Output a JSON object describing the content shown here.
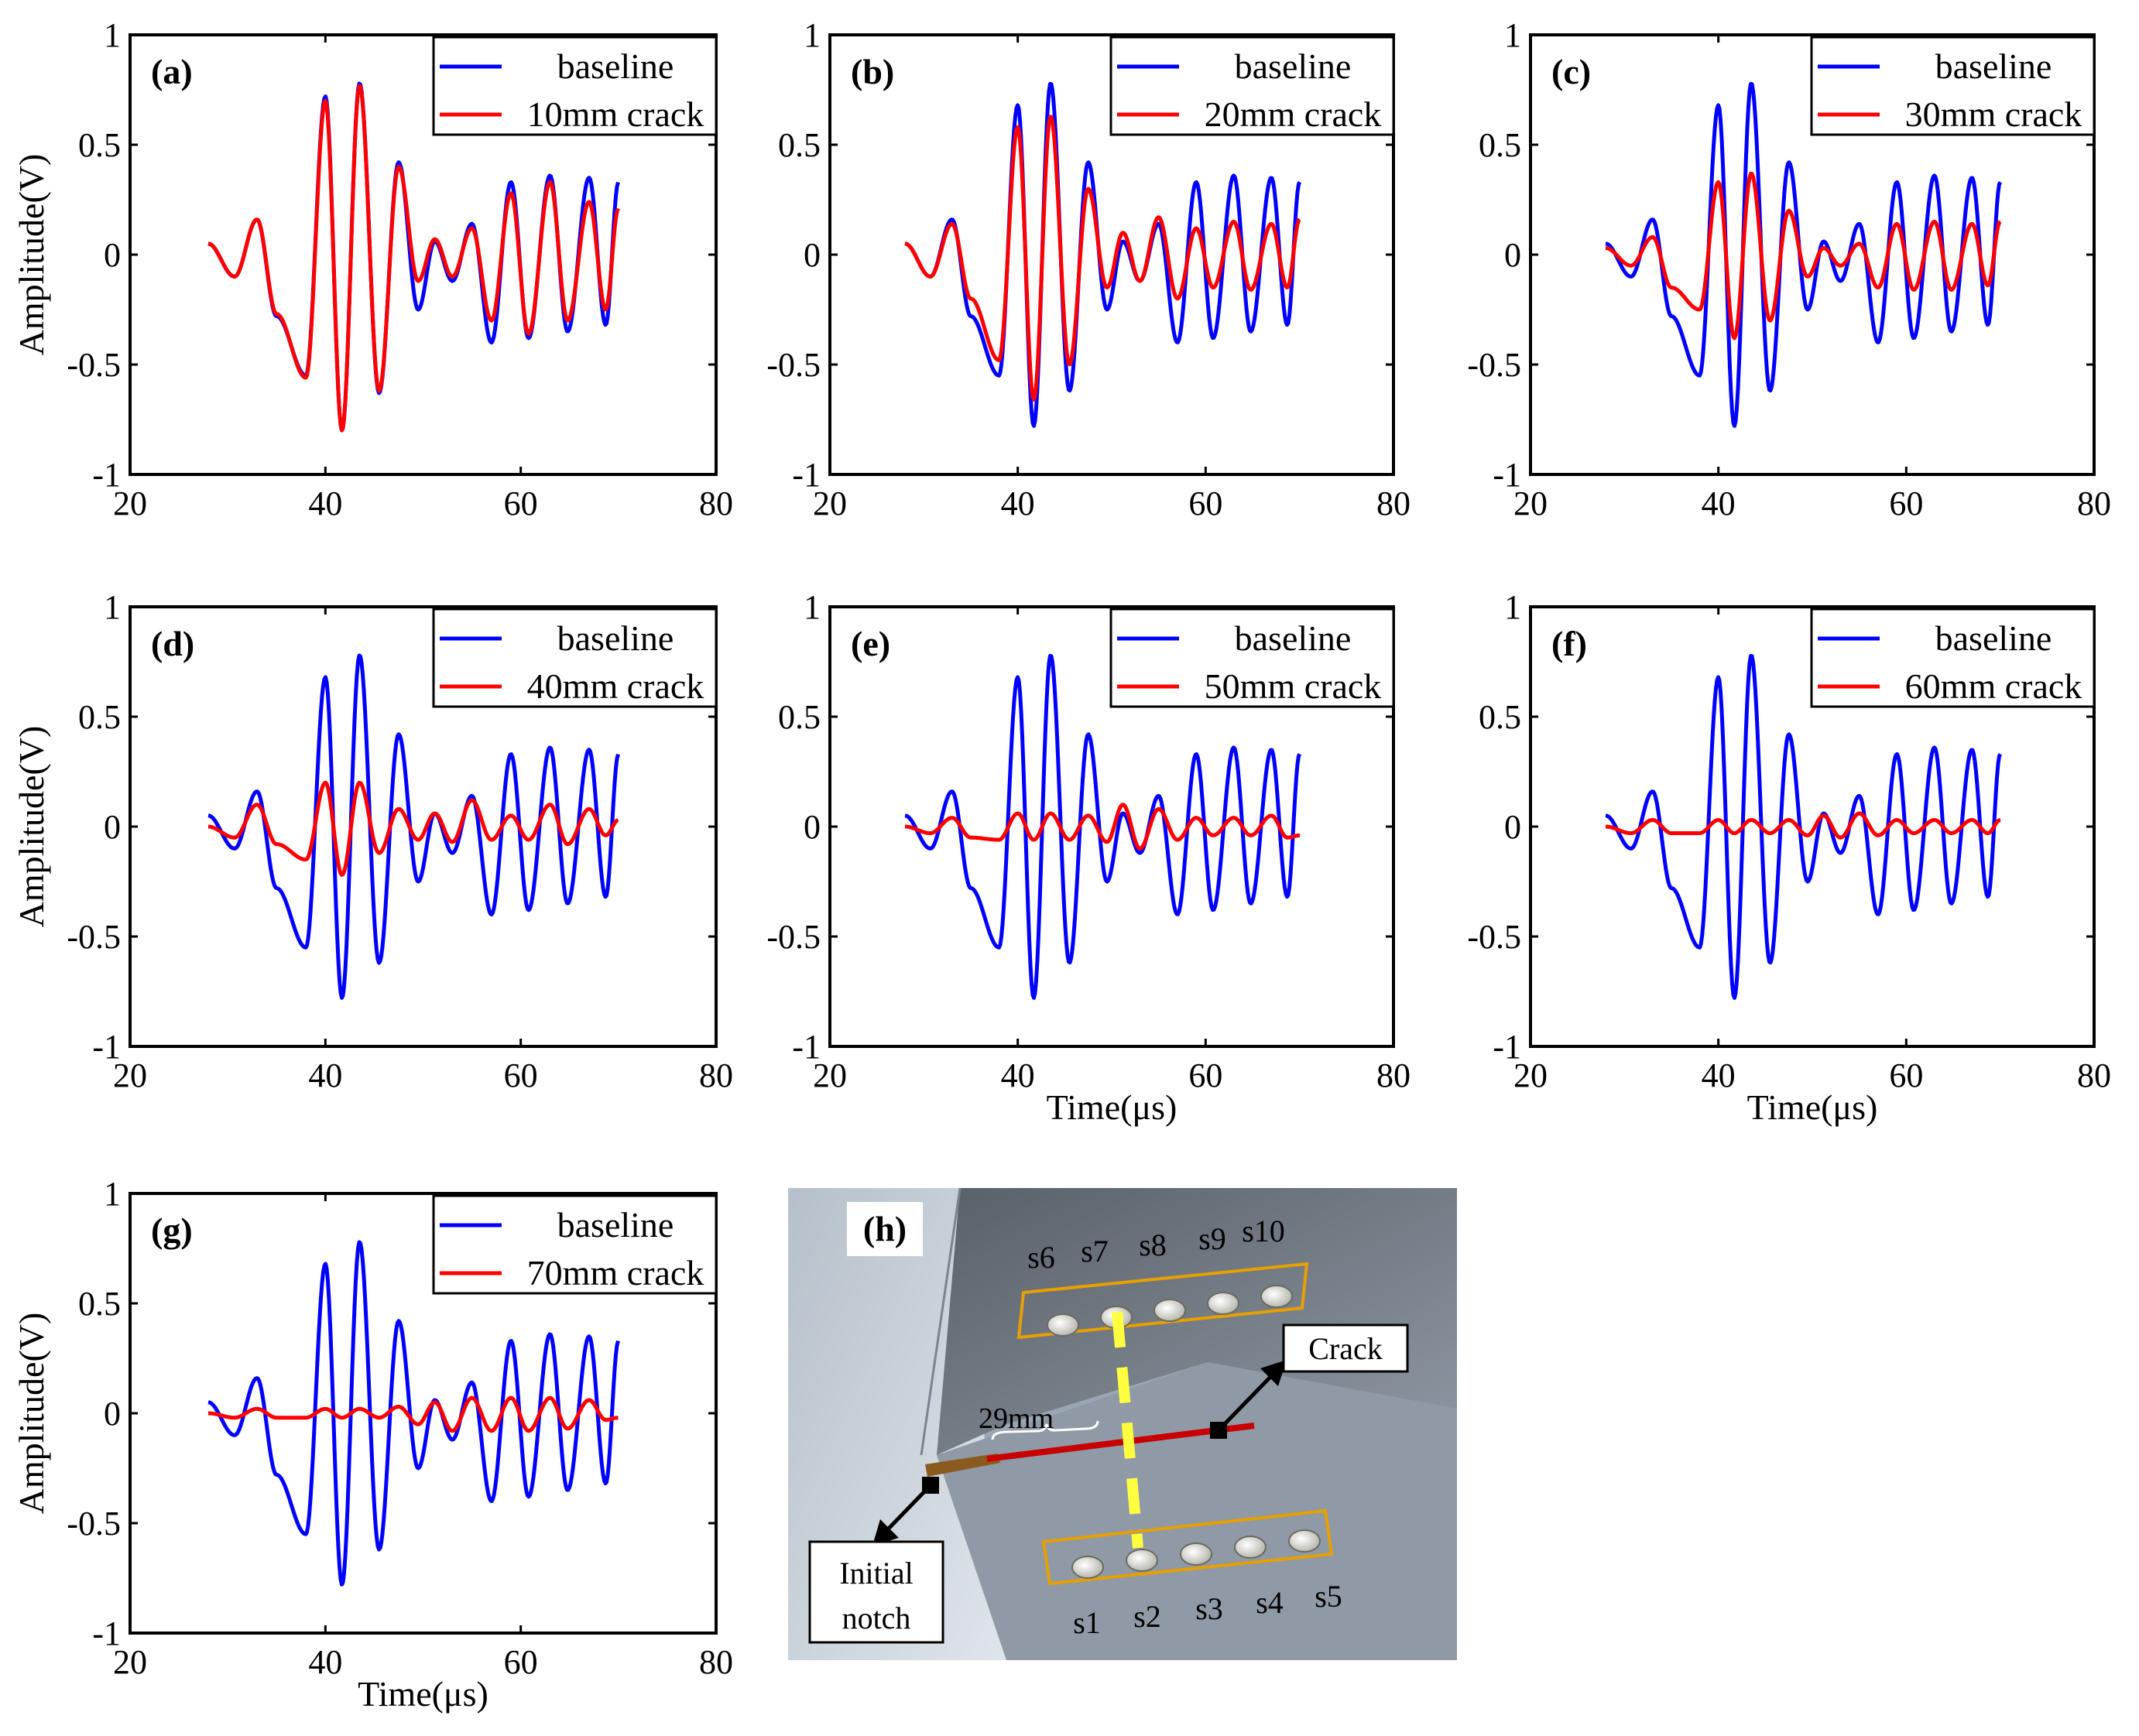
{
  "figure": {
    "labels": [
      "(a)",
      "(b)",
      "(c)",
      "(d)",
      "(e)",
      "(f)",
      "(g)",
      "(h)"
    ]
  },
  "colors": {
    "baseline": "#0000ff",
    "crack": "#ff0000",
    "axis": "#000000"
  },
  "chart_data": [
    {
      "type": "line",
      "panel": "(a)",
      "crack_mm": 10,
      "xlim": [
        20,
        80
      ],
      "ylim": [
        -1,
        1
      ],
      "xticks": [
        "20",
        "40",
        "60",
        "80"
      ],
      "yticks": [
        "-1",
        "-0.5",
        "0",
        "0.5",
        "1"
      ],
      "xlabel": "",
      "ylabel": "Amplitude(V)",
      "legend": [
        "baseline",
        "10mm crack"
      ],
      "legend_position": "top-right",
      "series": [
        {
          "name": "baseline",
          "x": [
            28,
            30.7,
            33,
            35,
            38,
            40,
            41.7,
            43.5,
            45.5,
            47.5,
            49.5,
            51.2,
            53,
            55,
            57,
            59,
            60.8,
            63,
            64.8,
            67,
            68.7,
            70
          ],
          "values": [
            0.05,
            -0.1,
            0.16,
            -0.28,
            -0.55,
            0.72,
            -0.8,
            0.78,
            -0.63,
            0.42,
            -0.25,
            0.06,
            -0.12,
            0.14,
            -0.4,
            0.33,
            -0.38,
            0.36,
            -0.35,
            0.35,
            -0.32,
            0.33
          ]
        },
        {
          "name": "10mm crack",
          "x": [
            28,
            30.7,
            33,
            35,
            38,
            40,
            41.7,
            43.5,
            45.5,
            47.5,
            49.5,
            51.2,
            53,
            55,
            57,
            59,
            60.8,
            63,
            64.8,
            67,
            68.7,
            70
          ],
          "values": [
            0.05,
            -0.1,
            0.16,
            -0.27,
            -0.56,
            0.7,
            -0.8,
            0.77,
            -0.62,
            0.4,
            -0.12,
            0.07,
            -0.1,
            0.12,
            -0.3,
            0.28,
            -0.36,
            0.33,
            -0.3,
            0.24,
            -0.25,
            0.21
          ]
        }
      ]
    },
    {
      "type": "line",
      "panel": "(b)",
      "crack_mm": 20,
      "xlim": [
        20,
        80
      ],
      "ylim": [
        -1,
        1
      ],
      "xticks": [
        "20",
        "40",
        "60",
        "80"
      ],
      "yticks": [
        "-1",
        "-0.5",
        "0",
        "0.5",
        "1"
      ],
      "xlabel": "",
      "ylabel": "",
      "legend": [
        "baseline",
        "20mm crack"
      ],
      "legend_position": "top-right",
      "series": [
        {
          "name": "baseline",
          "x": [
            28,
            30.7,
            33,
            35,
            38,
            40,
            41.7,
            43.5,
            45.5,
            47.5,
            49.5,
            51.2,
            53,
            55,
            57,
            59,
            60.8,
            63,
            64.8,
            67,
            68.7,
            70
          ],
          "values": [
            0.05,
            -0.1,
            0.16,
            -0.28,
            -0.55,
            0.68,
            -0.78,
            0.78,
            -0.62,
            0.42,
            -0.25,
            0.06,
            -0.12,
            0.14,
            -0.4,
            0.33,
            -0.38,
            0.36,
            -0.35,
            0.35,
            -0.32,
            0.33
          ]
        },
        {
          "name": "20mm crack",
          "x": [
            28,
            30.7,
            33,
            35,
            38,
            40,
            41.7,
            43.5,
            45.5,
            47.5,
            49.5,
            51.2,
            53,
            55,
            57,
            59,
            60.8,
            63,
            64.8,
            67,
            68.7,
            70
          ],
          "values": [
            0.05,
            -0.1,
            0.14,
            -0.2,
            -0.48,
            0.58,
            -0.66,
            0.63,
            -0.5,
            0.3,
            -0.15,
            0.1,
            -0.12,
            0.17,
            -0.2,
            0.12,
            -0.15,
            0.15,
            -0.16,
            0.14,
            -0.15,
            0.16
          ]
        }
      ]
    },
    {
      "type": "line",
      "panel": "(c)",
      "crack_mm": 30,
      "xlim": [
        20,
        80
      ],
      "ylim": [
        -1,
        1
      ],
      "xticks": [
        "20",
        "40",
        "60",
        "80"
      ],
      "yticks": [
        "-1",
        "-0.5",
        "0",
        "0.5",
        "1"
      ],
      "xlabel": "",
      "ylabel": "",
      "legend": [
        "baseline",
        "30mm crack"
      ],
      "legend_position": "top-right",
      "series": [
        {
          "name": "baseline",
          "x": [
            28,
            30.7,
            33,
            35,
            38,
            40,
            41.7,
            43.5,
            45.5,
            47.5,
            49.5,
            51.2,
            53,
            55,
            57,
            59,
            60.8,
            63,
            64.8,
            67,
            68.7,
            70
          ],
          "values": [
            0.05,
            -0.1,
            0.16,
            -0.28,
            -0.55,
            0.68,
            -0.78,
            0.78,
            -0.62,
            0.42,
            -0.25,
            0.06,
            -0.12,
            0.14,
            -0.4,
            0.33,
            -0.38,
            0.36,
            -0.35,
            0.35,
            -0.32,
            0.33
          ]
        },
        {
          "name": "30mm crack",
          "x": [
            28,
            30.7,
            33,
            35,
            38,
            40,
            41.7,
            43.5,
            45.5,
            47.5,
            49.5,
            51.2,
            53,
            55,
            57,
            59,
            60.8,
            63,
            64.8,
            67,
            68.7,
            70
          ],
          "values": [
            0.03,
            -0.05,
            0.08,
            -0.15,
            -0.25,
            0.33,
            -0.38,
            0.37,
            -0.3,
            0.2,
            -0.1,
            0.03,
            -0.05,
            0.05,
            -0.15,
            0.14,
            -0.16,
            0.15,
            -0.16,
            0.14,
            -0.14,
            0.15
          ]
        }
      ]
    },
    {
      "type": "line",
      "panel": "(d)",
      "crack_mm": 40,
      "xlim": [
        20,
        80
      ],
      "ylim": [
        -1,
        1
      ],
      "xticks": [
        "20",
        "40",
        "60",
        "80"
      ],
      "yticks": [
        "-1",
        "-0.5",
        "0",
        "0.5",
        "1"
      ],
      "xlabel": "",
      "ylabel": "Amplitude(V)",
      "legend": [
        "baseline",
        "40mm crack"
      ],
      "legend_position": "top-right",
      "series": [
        {
          "name": "baseline",
          "x": [
            28,
            30.7,
            33,
            35,
            38,
            40,
            41.7,
            43.5,
            45.5,
            47.5,
            49.5,
            51.2,
            53,
            55,
            57,
            59,
            60.8,
            63,
            64.8,
            67,
            68.7,
            70
          ],
          "values": [
            0.05,
            -0.1,
            0.16,
            -0.28,
            -0.55,
            0.68,
            -0.78,
            0.78,
            -0.62,
            0.42,
            -0.25,
            0.06,
            -0.12,
            0.14,
            -0.4,
            0.33,
            -0.38,
            0.36,
            -0.35,
            0.35,
            -0.32,
            0.33
          ]
        },
        {
          "name": "40mm crack",
          "x": [
            28,
            30.7,
            33,
            35,
            38,
            40,
            41.7,
            43.5,
            45.5,
            47.5,
            49.5,
            51.2,
            53,
            55,
            57,
            59,
            60.8,
            63,
            64.8,
            67,
            68.7,
            70
          ],
          "values": [
            0,
            -0.05,
            0.1,
            -0.08,
            -0.15,
            0.2,
            -0.22,
            0.2,
            -0.12,
            0.08,
            -0.06,
            0.06,
            -0.07,
            0.12,
            -0.06,
            0.05,
            -0.06,
            0.1,
            -0.08,
            0.08,
            -0.04,
            0.03
          ]
        }
      ]
    },
    {
      "type": "line",
      "panel": "(e)",
      "crack_mm": 50,
      "xlim": [
        20,
        80
      ],
      "ylim": [
        -1,
        1
      ],
      "xticks": [
        "20",
        "40",
        "60",
        "80"
      ],
      "yticks": [
        "-1",
        "-0.5",
        "0",
        "0.5",
        "1"
      ],
      "xlabel": "Time(μs)",
      "ylabel": "",
      "legend": [
        "baseline",
        "50mm crack"
      ],
      "legend_position": "top-right",
      "series": [
        {
          "name": "baseline",
          "x": [
            28,
            30.7,
            33,
            35,
            38,
            40,
            41.7,
            43.5,
            45.5,
            47.5,
            49.5,
            51.2,
            53,
            55,
            57,
            59,
            60.8,
            63,
            64.8,
            67,
            68.7,
            70
          ],
          "values": [
            0.05,
            -0.1,
            0.16,
            -0.28,
            -0.55,
            0.68,
            -0.78,
            0.78,
            -0.62,
            0.42,
            -0.25,
            0.06,
            -0.12,
            0.14,
            -0.4,
            0.33,
            -0.38,
            0.36,
            -0.35,
            0.35,
            -0.32,
            0.33
          ]
        },
        {
          "name": "50mm crack",
          "x": [
            28,
            30.7,
            33,
            35,
            38,
            40,
            41.7,
            43.5,
            45.5,
            47.5,
            49.5,
            51.2,
            53,
            55,
            57,
            59,
            60.8,
            63,
            64.8,
            67,
            68.7,
            70
          ],
          "values": [
            0,
            -0.03,
            0.04,
            -0.05,
            -0.06,
            0.06,
            -0.06,
            0.06,
            -0.06,
            0.05,
            -0.07,
            0.1,
            -0.1,
            0.08,
            -0.06,
            0.04,
            -0.04,
            0.04,
            -0.04,
            0.05,
            -0.05,
            -0.04
          ]
        }
      ]
    },
    {
      "type": "line",
      "panel": "(f)",
      "crack_mm": 60,
      "xlim": [
        20,
        80
      ],
      "ylim": [
        -1,
        1
      ],
      "xticks": [
        "20",
        "40",
        "60",
        "80"
      ],
      "yticks": [
        "-1",
        "-0.5",
        "0",
        "0.5",
        "1"
      ],
      "xlabel": "Time(μs)",
      "ylabel": "",
      "legend": [
        "baseline",
        "60mm crack"
      ],
      "legend_position": "top-right",
      "series": [
        {
          "name": "baseline",
          "x": [
            28,
            30.7,
            33,
            35,
            38,
            40,
            41.7,
            43.5,
            45.5,
            47.5,
            49.5,
            51.2,
            53,
            55,
            57,
            59,
            60.8,
            63,
            64.8,
            67,
            68.7,
            70
          ],
          "values": [
            0.05,
            -0.1,
            0.16,
            -0.28,
            -0.55,
            0.68,
            -0.78,
            0.78,
            -0.62,
            0.42,
            -0.25,
            0.06,
            -0.12,
            0.14,
            -0.4,
            0.33,
            -0.38,
            0.36,
            -0.35,
            0.35,
            -0.32,
            0.33
          ]
        },
        {
          "name": "60mm crack",
          "x": [
            28,
            30.7,
            33,
            35,
            38,
            40,
            41.7,
            43.5,
            45.5,
            47.5,
            49.5,
            51.2,
            53,
            55,
            57,
            59,
            60.8,
            63,
            64.8,
            67,
            68.7,
            70
          ],
          "values": [
            0,
            -0.03,
            0.03,
            -0.03,
            -0.03,
            0.03,
            -0.03,
            0.03,
            -0.03,
            0.03,
            -0.04,
            0.05,
            -0.05,
            0.06,
            -0.04,
            0.03,
            -0.03,
            0.03,
            -0.03,
            0.03,
            -0.03,
            0.03
          ]
        }
      ]
    },
    {
      "type": "line",
      "panel": "(g)",
      "crack_mm": 70,
      "xlim": [
        20,
        80
      ],
      "ylim": [
        -1,
        1
      ],
      "xticks": [
        "20",
        "40",
        "60",
        "80"
      ],
      "yticks": [
        "-1",
        "-0.5",
        "0",
        "0.5",
        "1"
      ],
      "xlabel": "Time(μs)",
      "ylabel": "Amplitude(V)",
      "legend": [
        "baseline",
        "70mm crack"
      ],
      "legend_position": "top-right",
      "series": [
        {
          "name": "baseline",
          "x": [
            28,
            30.7,
            33,
            35,
            38,
            40,
            41.7,
            43.5,
            45.5,
            47.5,
            49.5,
            51.2,
            53,
            55,
            57,
            59,
            60.8,
            63,
            64.8,
            67,
            68.7,
            70
          ],
          "values": [
            0.05,
            -0.1,
            0.16,
            -0.28,
            -0.55,
            0.68,
            -0.78,
            0.78,
            -0.62,
            0.42,
            -0.25,
            0.06,
            -0.12,
            0.14,
            -0.4,
            0.33,
            -0.38,
            0.36,
            -0.35,
            0.35,
            -0.32,
            0.33
          ]
        },
        {
          "name": "70mm crack",
          "x": [
            28,
            30.7,
            33,
            35,
            38,
            40,
            41.7,
            43.5,
            45.5,
            47.5,
            49.5,
            51.2,
            53,
            55,
            57,
            59,
            60.8,
            63,
            64.8,
            67,
            68.7,
            70
          ],
          "values": [
            0,
            -0.02,
            0.02,
            -0.02,
            -0.02,
            0.02,
            -0.02,
            0.02,
            -0.02,
            0.03,
            -0.05,
            0.05,
            -0.08,
            0.07,
            -0.08,
            0.07,
            -0.08,
            0.07,
            -0.07,
            0.06,
            -0.03,
            -0.02
          ]
        }
      ]
    }
  ],
  "diagram": {
    "label": "(h)",
    "sensors_top": [
      "s6",
      "s7",
      "s8",
      "s9",
      "s10"
    ],
    "sensors_bottom": [
      "s1",
      "s2",
      "s3",
      "s4",
      "s5"
    ],
    "distance_label": "29mm",
    "crack_label": "Crack",
    "notch_label_line1": "Initial",
    "notch_label_line2": "notch"
  }
}
